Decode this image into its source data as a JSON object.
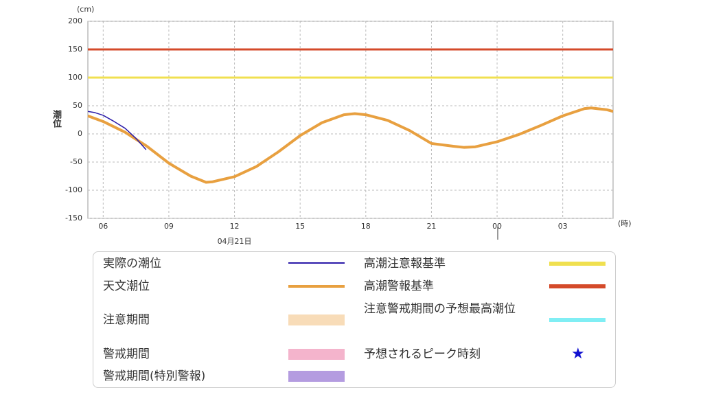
{
  "chart_data": {
    "type": "line",
    "y_label": "潮位",
    "y_unit": "(cm)",
    "x_unit": "(時)",
    "date_label": "04月21日",
    "xlim": [
      5.3,
      29.3
    ],
    "xticks": [
      {
        "value": 6,
        "label": "06"
      },
      {
        "value": 9,
        "label": "09"
      },
      12,
      15,
      18,
      21,
      {
        "value": 24,
        "label": "00"
      },
      {
        "value": 27,
        "label": "03"
      }
    ],
    "ylim": [
      -150,
      200
    ],
    "yticks": [
      -150,
      -100,
      -50,
      0,
      50,
      100,
      150,
      200
    ],
    "grid": true,
    "series": [
      {
        "name": "実際の潮位",
        "color": "#2a1aa8",
        "x": [
          5.3,
          5.6,
          6,
          6.5,
          7,
          7.5,
          7.96
        ],
        "values": [
          40,
          38,
          33,
          22,
          10,
          -8,
          -28
        ]
      },
      {
        "name": "天文潮位",
        "color": "#e8a040",
        "x": [
          5.3,
          6,
          7,
          8,
          9,
          10,
          10.7,
          11,
          12,
          13,
          14,
          15,
          16,
          17,
          17.5,
          18,
          19,
          20,
          21,
          22,
          22.5,
          23,
          24,
          25,
          26,
          27,
          28,
          28.3,
          29,
          29.3
        ],
        "values": [
          32,
          22,
          3,
          -22,
          -52,
          -75,
          -86,
          -85,
          -76,
          -58,
          -32,
          -3,
          20,
          34,
          36,
          34,
          24,
          6,
          -17,
          -22,
          -24,
          -23,
          -14,
          -1,
          15,
          32,
          45,
          46,
          43,
          40
        ]
      }
    ],
    "periods": [
      {
        "name": "注意期間",
        "color": "#f8dcb8"
      },
      {
        "name": "警戒期間",
        "color": "#f4b4cc"
      },
      {
        "name": "警戒期間(特別警報)",
        "color": "#b49ce0"
      }
    ],
    "thresholds": [
      {
        "name": "高潮注意報基準",
        "value": 100,
        "color": "#f0e050"
      },
      {
        "name": "高潮警報基準",
        "value": 150,
        "color": "#d44a2a"
      }
    ],
    "markers": [
      {
        "name": "注意警戒期間の予想最高潮位",
        "color": "#80eef4"
      },
      {
        "name": "予想されるピーク時刻",
        "symbol": "★",
        "color": "#1010d0"
      }
    ]
  }
}
